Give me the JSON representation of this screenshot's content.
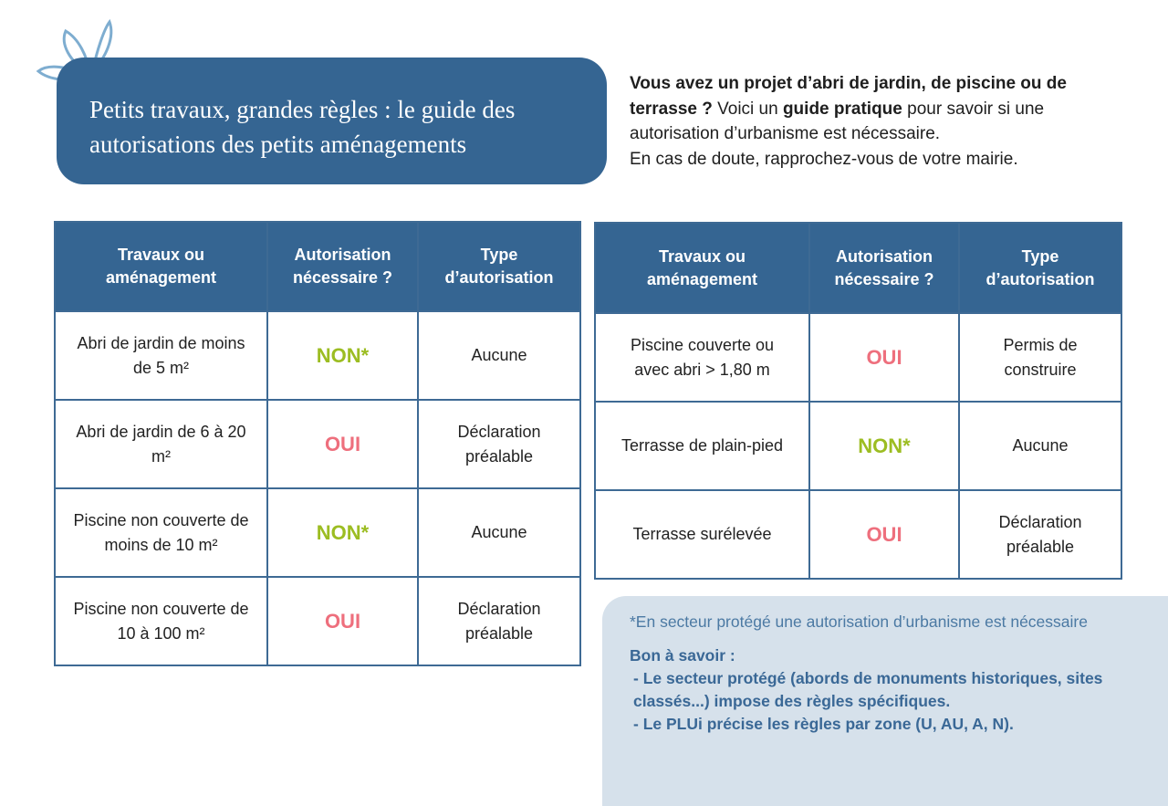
{
  "header": {
    "title": [
      "Petits travaux, grandes règles : le guide des",
      "autorisations des petits aménagements"
    ]
  },
  "intro": {
    "lead_bold": "Vous avez un projet d’abri de jardin, de piscine ou de terrasse ?",
    "text_1": "Voici un",
    "bold_2": "guide pratique",
    "text_2": "pour savoir si une autorisation d’urbanisme est nécessaire.",
    "closing": "En cas de doute, rapprochez-vous de votre mairie."
  },
  "tables": [
    {
      "headers": [
        "Travaux ou aménagement",
        "Autorisation nécessaire ?",
        "Type d’autorisation"
      ],
      "rows": [
        {
          "work": "Abri de jardin de moins de 5 m²",
          "status": "NON*",
          "status_color": "#9cbd22",
          "type": "Aucune"
        },
        {
          "work": "Abri de jardin de 6 à 20 m²",
          "status": "OUI",
          "status_color": "#ee6f7d",
          "type": "Déclaration préalable"
        },
        {
          "work": "Piscine non couverte de moins de 10 m²",
          "status": "NON*",
          "status_color": "#9cbd22",
          "type": "Aucune"
        },
        {
          "work": "Piscine non couverte de 10 à 100 m²",
          "status": "OUI",
          "status_color": "#ee6f7d",
          "type": "Déclaration préalable"
        }
      ]
    },
    {
      "headers": [
        "Travaux ou aménagement",
        "Autorisation nécessaire ?",
        "Type d’autorisation"
      ],
      "rows": [
        {
          "work": "Piscine couverte ou avec abri > 1,80 m",
          "status": "OUI",
          "status_color": "#ee6f7d",
          "type": "Permis de construire"
        },
        {
          "work": "Terrasse de plain-pied",
          "status": "NON*",
          "status_color": "#9cbd22",
          "type": "Aucune"
        },
        {
          "work": "Terrasse surélevée",
          "status": "OUI",
          "status_color": "#ee6f7d",
          "type": "Déclaration préalable"
        }
      ]
    }
  ],
  "note": {
    "asterisk": "*En secteur protégé une autorisation d’urbanisme est nécessaire",
    "heading": "Bon à savoir :",
    "items": [
      "- Le secteur protégé (abords de monuments historiques, sites classés...) impose des règles spécifiques.",
      "- Le PLUi précise les règles par zone (U, AU, A, N)."
    ]
  }
}
